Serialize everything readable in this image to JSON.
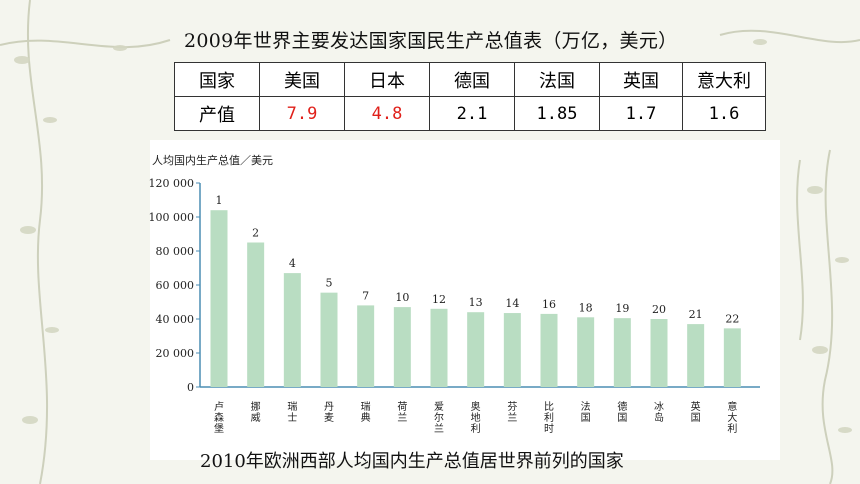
{
  "heading": "2009年世界主要发达国家国民生产总值表（万亿，美元）",
  "gdp_table": {
    "row_header_country": "国家",
    "row_header_value": "产值",
    "countries": [
      "美国",
      "日本",
      "德国",
      "法国",
      "英国",
      "意大利"
    ],
    "values": [
      "7.9",
      "4.8",
      "2.1",
      "1.85",
      "1.7",
      "1.6"
    ],
    "highlight_color": "#e0201a"
  },
  "chart_data": {
    "type": "bar",
    "title": "",
    "ylabel": "人均国内生产总值／美元",
    "xlabel": "",
    "ylim": [
      0,
      120000
    ],
    "yticks": [
      "0",
      "20 000",
      "40 000",
      "60 000",
      "80 000",
      "100 000",
      "120 000"
    ],
    "categories": [
      "卢森堡",
      "挪威",
      "瑞士",
      "丹麦",
      "瑞典",
      "荷兰",
      "爱尔兰",
      "奥地利",
      "芬兰",
      "比利时",
      "法国",
      "德国",
      "冰岛",
      "英国",
      "意大利"
    ],
    "values": [
      104000,
      85000,
      67000,
      55500,
      48000,
      47000,
      46000,
      44000,
      43500,
      43000,
      41000,
      40500,
      40000,
      37000,
      34500
    ],
    "data_labels": [
      "1",
      "2",
      "4",
      "5",
      "7",
      "10",
      "12",
      "13",
      "14",
      "16",
      "18",
      "19",
      "20",
      "21",
      "22"
    ],
    "bar_color": "#b9ddc2",
    "axis_color": "#4b8db4"
  },
  "caption": "2010年欧洲西部人均国内生产总值居世界前列的国家"
}
